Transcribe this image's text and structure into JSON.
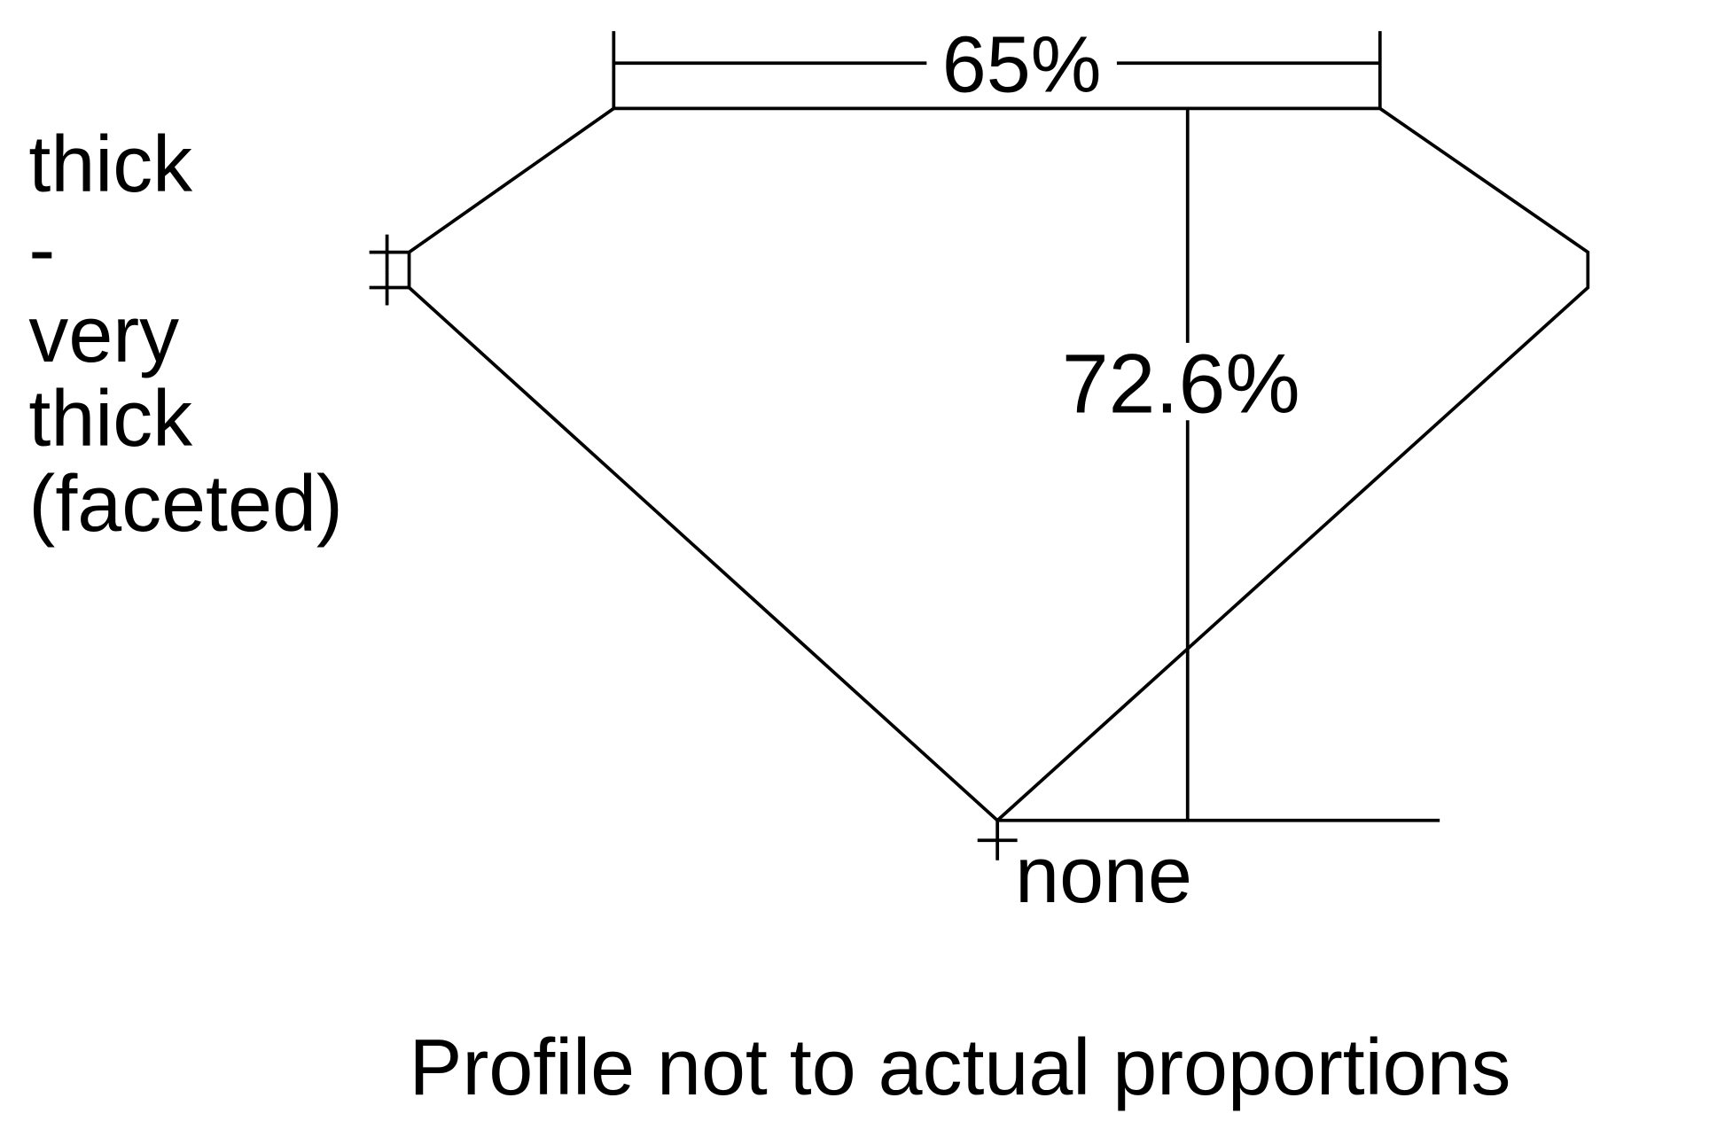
{
  "labels": {
    "table_percent": "65%",
    "depth_percent": "72.6%",
    "girdle_lines": [
      "thick",
      "-",
      "very",
      "thick",
      "(faceted)"
    ],
    "culet": "none",
    "note": "Profile not to actual proportions"
  },
  "colors": {
    "line": "#000000",
    "background": "#ffffff"
  }
}
